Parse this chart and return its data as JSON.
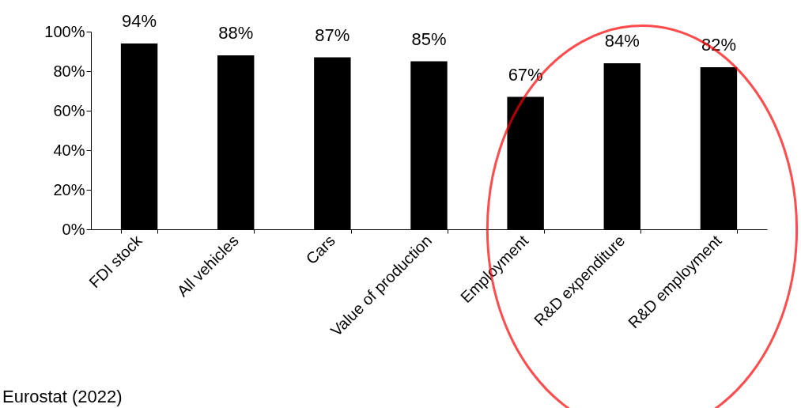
{
  "chart_data": {
    "type": "bar",
    "categories": [
      "FDI stock",
      "All vehicles",
      "Cars",
      "Value of production",
      "Employment",
      "R&D expenditure",
      "R&D employment"
    ],
    "values": [
      94,
      88,
      87,
      85,
      67,
      84,
      82
    ],
    "color": "#000000",
    "ylim": [
      0,
      100
    ],
    "yticks": [
      {
        "value": 0,
        "label": "0%"
      },
      {
        "value": 20,
        "label": "20%"
      },
      {
        "value": 40,
        "label": "40%"
      },
      {
        "value": 60,
        "label": "60%"
      },
      {
        "value": 80,
        "label": "80%"
      },
      {
        "value": 100,
        "label": "100%"
      }
    ],
    "value_labels": [
      "94%",
      "88%",
      "87%",
      "85%",
      "67%",
      "84%",
      "82%"
    ],
    "annotations": [
      "Eurostat  (2022)"
    ],
    "grid": false
  }
}
